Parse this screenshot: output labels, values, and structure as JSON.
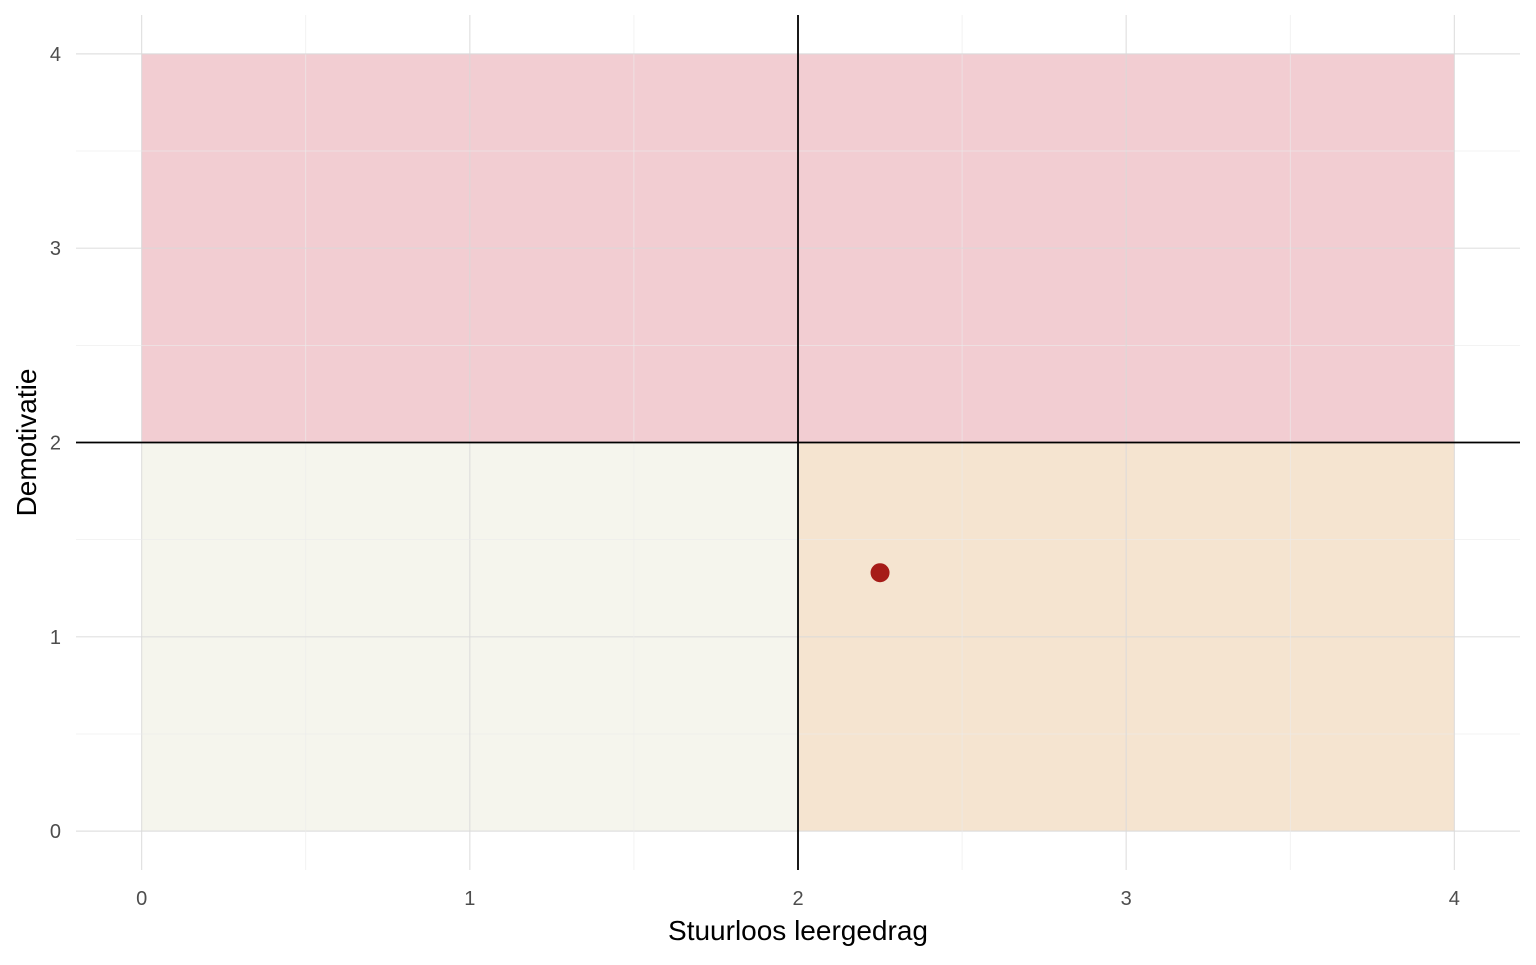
{
  "chart_data": {
    "type": "scatter",
    "title": "",
    "xlabel": "Stuurloos leergedrag",
    "ylabel": "Demotivatie",
    "xlim": [
      -0.2,
      4.2
    ],
    "ylim": [
      -0.2,
      4.2
    ],
    "x_ticks": [
      0,
      1,
      2,
      3,
      4
    ],
    "y_ticks": [
      0,
      1,
      2,
      3,
      4
    ],
    "x_tick_labels": [
      "0",
      "1",
      "2",
      "3",
      "4"
    ],
    "y_tick_labels": [
      "0",
      "1",
      "2",
      "3",
      "4"
    ],
    "grid": true,
    "legend": "none",
    "reference_lines": {
      "x": 2,
      "y": 2,
      "color": "#000000"
    },
    "regions": [
      {
        "xmin": 0,
        "xmax": 4,
        "ymin": 2,
        "ymax": 4,
        "color": "#f2cdd2"
      },
      {
        "xmin": 0,
        "xmax": 2,
        "ymin": 0,
        "ymax": 2,
        "color": "#f5f5ed"
      },
      {
        "xmin": 2,
        "xmax": 4,
        "ymin": 0,
        "ymax": 2,
        "color": "#f5e4d0"
      }
    ],
    "points": [
      {
        "x": 2.25,
        "y": 1.33,
        "color": "#a61c18"
      }
    ]
  }
}
